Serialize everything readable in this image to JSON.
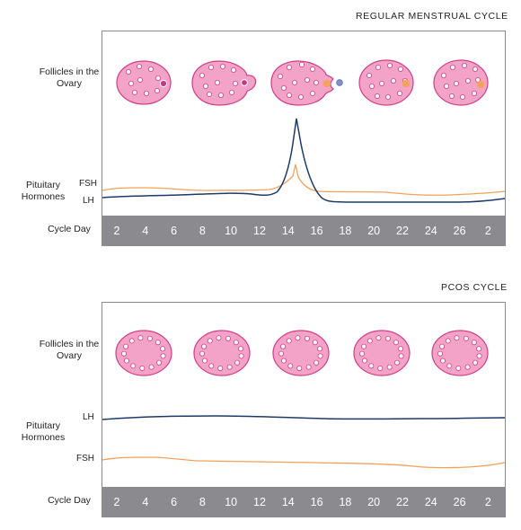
{
  "colors": {
    "follicle_fill": "#f4a3c8",
    "follicle_stroke": "#cf3f86",
    "lh_line": "#1d3a6b",
    "fsh_line": "#f0a25a",
    "day_bar": "#8b8b8f",
    "dominant_follicle": "#c03a8a",
    "mature_follicle": "#f5a25a",
    "released_egg": "#7f8fc8"
  },
  "regular": {
    "title": "REGULAR MENSTRUAL CYCLE",
    "follicles_label": "Follicles in the Ovary",
    "hormones_label": "Pituitary Hormones",
    "fsh_label": "FSH",
    "lh_label": "LH",
    "cycle_day_label": "Cycle Day",
    "days": [
      "2",
      "4",
      "6",
      "8",
      "10",
      "12",
      "14",
      "16",
      "18",
      "20",
      "22",
      "24",
      "26",
      "2"
    ]
  },
  "pcos": {
    "title": "PCOS CYCLE",
    "follicles_label": "Follicles in the Ovary",
    "hormones_label": "Pituitary Hormones",
    "fsh_label": "FSH",
    "lh_label": "LH",
    "cycle_day_label": "Cycle Day",
    "days": [
      "2",
      "4",
      "6",
      "8",
      "10",
      "12",
      "14",
      "16",
      "18",
      "20",
      "22",
      "24",
      "26",
      "2"
    ]
  }
}
